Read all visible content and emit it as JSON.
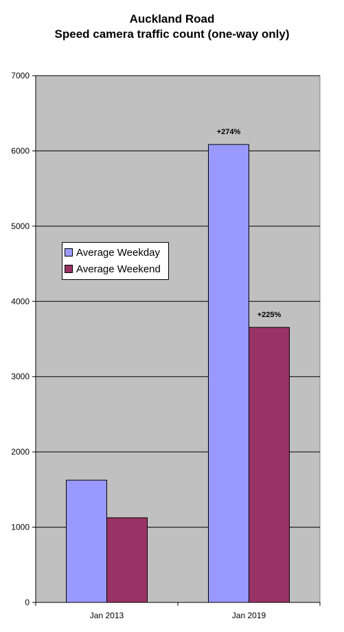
{
  "chart_data": {
    "type": "bar",
    "title": "Auckland Road",
    "subtitle": "Speed camera traffic count (one-way only)",
    "xlabel": "",
    "ylabel": "",
    "categories": [
      "Jan 2013",
      "Jan 2019"
    ],
    "series": [
      {
        "name": "Average Weekday",
        "color": "#9999ff",
        "values": [
          1625,
          6085
        ],
        "annotations": [
          "",
          "+274%"
        ]
      },
      {
        "name": "Average Weekend",
        "color": "#993366",
        "values": [
          1125,
          3655
        ],
        "annotations": [
          "",
          "+225%"
        ]
      }
    ],
    "ylim": [
      0,
      7000
    ],
    "yticks": [
      0,
      1000,
      2000,
      3000,
      4000,
      5000,
      6000,
      7000
    ],
    "grid": true,
    "plot_background": "#c0c0c0",
    "legend_position": "middle-left"
  }
}
